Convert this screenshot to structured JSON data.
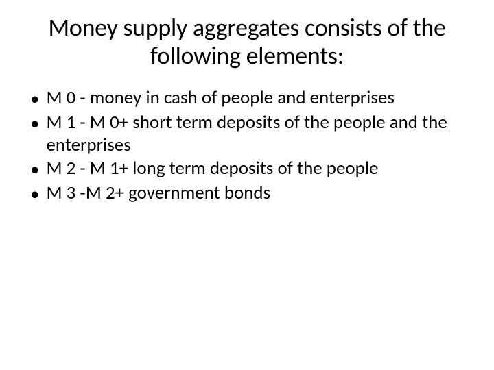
{
  "slide": {
    "title": "Money supply aggregates consists of the following elements:",
    "title_fontsize": 36,
    "title_color": "#000000",
    "title_align": "center",
    "background_color": "#ffffff",
    "bullets": [
      {
        "text": "M 0 - money in cash of people and enterprises"
      },
      {
        "text": "M 1 - M 0+ short term deposits of the people and the enterprises"
      },
      {
        "text": "M 2 - M 1+ long term deposits of the people"
      },
      {
        "text": "M 3 -M 2+ government bonds"
      }
    ],
    "bullet_fontsize": 27,
    "bullet_marker": "•",
    "bullet_color": "#000000",
    "font_family": "Calibri"
  }
}
